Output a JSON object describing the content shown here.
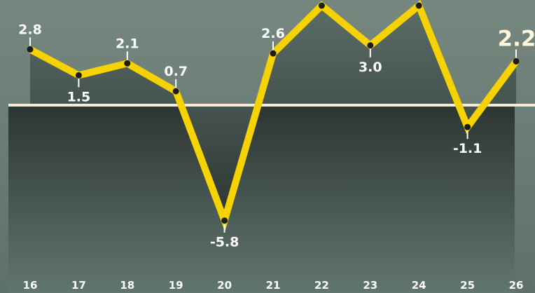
{
  "chart_data": {
    "type": "line",
    "categories": [
      "16",
      "17",
      "18",
      "19",
      "20",
      "21",
      "22",
      "23",
      "24",
      "25",
      "26"
    ],
    "values": [
      2.8,
      1.5,
      2.1,
      0.7,
      -5.8,
      2.6,
      5.0,
      3.0,
      5.0,
      -1.1,
      2.2
    ],
    "labels": [
      "2.8",
      "1.5",
      "2.1",
      "0.7",
      "-5.8",
      "2.6",
      "",
      "3.0",
      "",
      "-1.1",
      "2.2"
    ],
    "ylim": [
      -8.2,
      6.2
    ],
    "baseline": 0,
    "colors": {
      "line": "#f5d200",
      "marker": "#1b1d18",
      "baseline": "#f4ecd6",
      "text": "#ffffff",
      "last_label": "#fff7dc"
    }
  }
}
